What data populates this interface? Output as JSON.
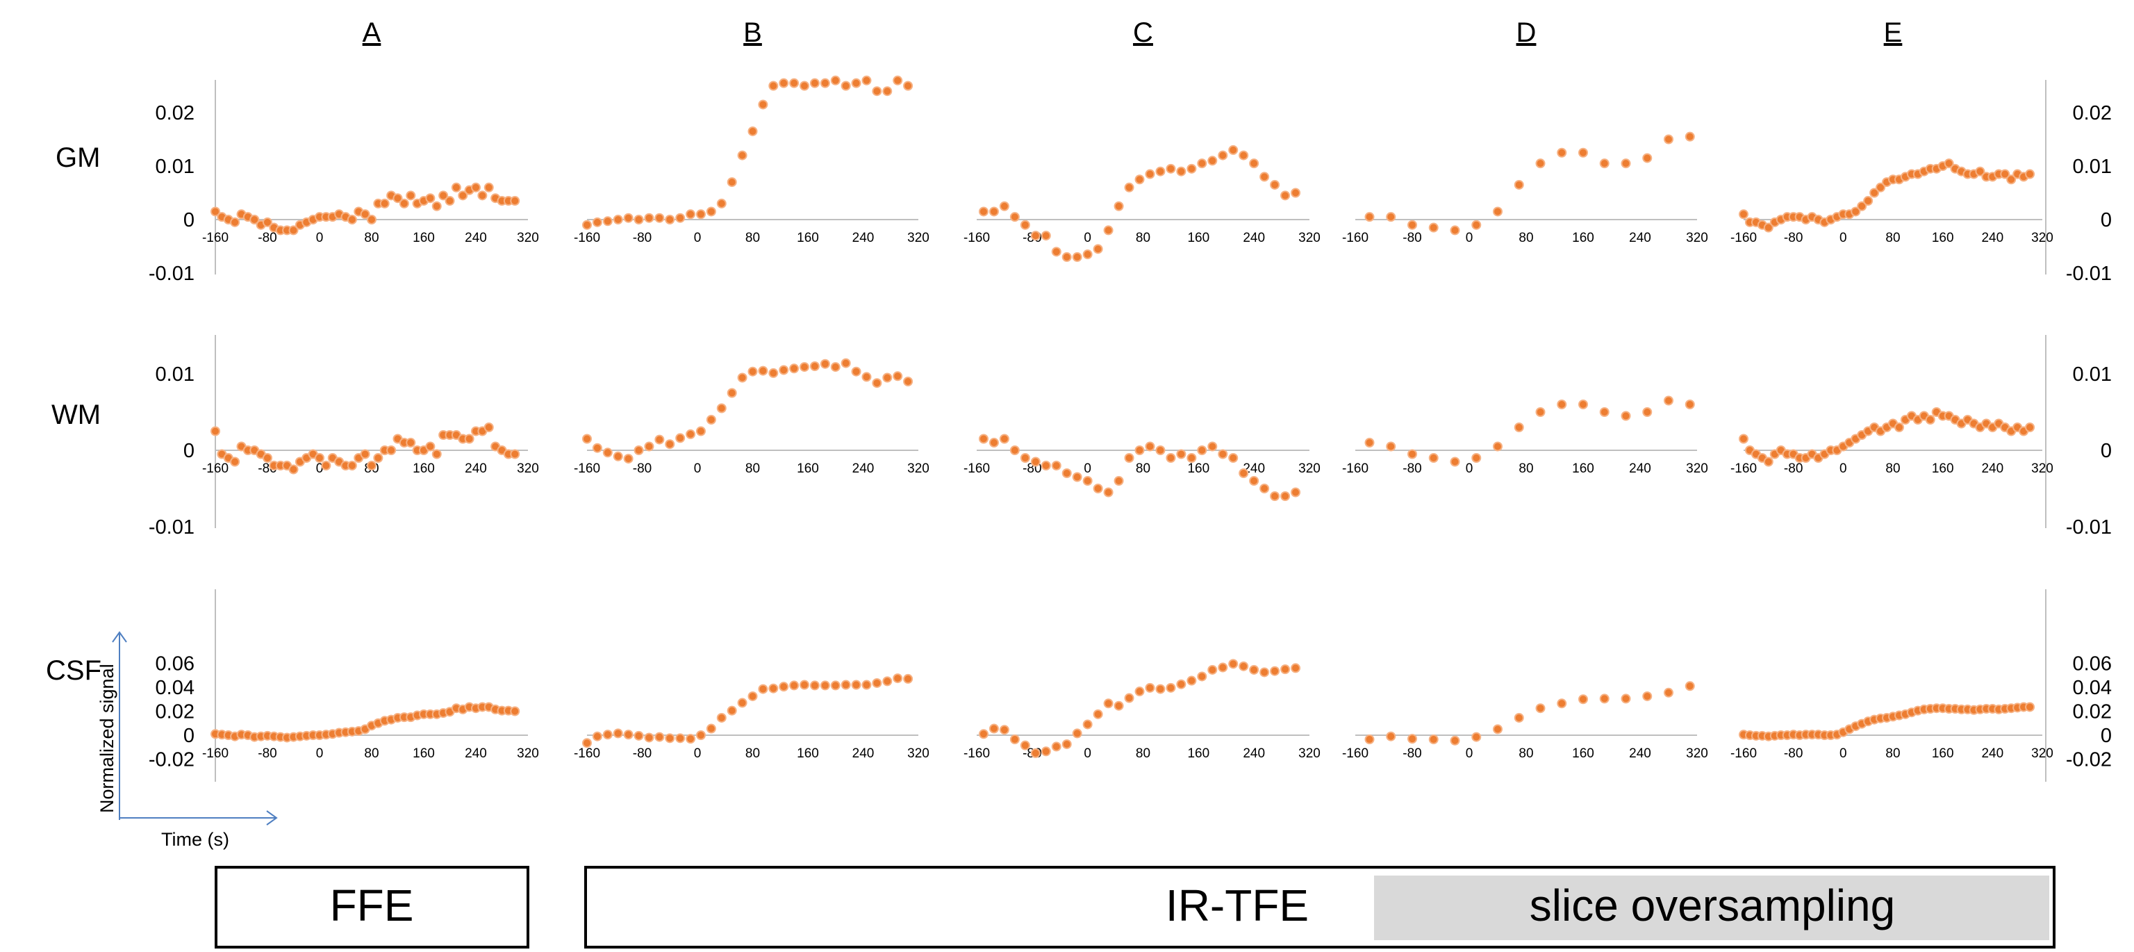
{
  "chart_data": {
    "type": "scatter",
    "columns": [
      "A",
      "B",
      "C",
      "D",
      "E"
    ],
    "rows": [
      "GM",
      "WM",
      "CSF"
    ],
    "x_axis": {
      "ticks": [
        -160,
        -80,
        0,
        80,
        160,
        240,
        320
      ],
      "range": [
        -160,
        320
      ]
    },
    "y_axis": {
      "GM": {
        "ticks": [
          "0.02",
          "0.01",
          "0",
          "-0.01"
        ],
        "range": [
          -0.01,
          0.025
        ]
      },
      "WM": {
        "ticks": [
          "0.01",
          "0",
          "-0.01"
        ],
        "range": [
          -0.01,
          0.01
        ]
      },
      "CSF": {
        "ticks": [
          "0.06",
          "0.04",
          "0.02",
          "0",
          "-0.02"
        ],
        "range": [
          -0.02,
          0.06
        ]
      }
    },
    "legend": {
      "ylabel": "Normalized signal",
      "xlabel": "Time (s)"
    },
    "groups": [
      {
        "label": "FFE",
        "columns": [
          "A"
        ]
      },
      {
        "label": "IR-TFE",
        "columns": [
          "B",
          "C",
          "D",
          "E"
        ]
      },
      {
        "label": "slice oversampling",
        "columns": [
          "D",
          "E"
        ]
      }
    ],
    "series": [
      {
        "column": "A",
        "row": "GM",
        "x": [
          -160,
          -150,
          -140,
          -130,
          -120,
          -110,
          -100,
          -90,
          -80,
          -70,
          -60,
          -50,
          -40,
          -30,
          -20,
          -10,
          0,
          10,
          20,
          30,
          40,
          50,
          60,
          70,
          80,
          90,
          100,
          110,
          120,
          130,
          140,
          150,
          160,
          170,
          180,
          190,
          200,
          210,
          220,
          230,
          240,
          250,
          260,
          270,
          280,
          290,
          300
        ],
        "y": [
          0.0015,
          0.0005,
          0.0,
          -0.0005,
          0.001,
          0.0005,
          0.0,
          -0.001,
          -0.0005,
          -0.0015,
          -0.002,
          -0.002,
          -0.002,
          -0.001,
          -0.0005,
          0.0,
          0.0005,
          0.0005,
          0.0005,
          0.001,
          0.0005,
          0.0,
          0.0015,
          0.001,
          0.0,
          0.003,
          0.003,
          0.0045,
          0.004,
          0.003,
          0.0045,
          0.003,
          0.0035,
          0.004,
          0.0025,
          0.0045,
          0.0035,
          0.006,
          0.0045,
          0.0055,
          0.006,
          0.0045,
          0.006,
          0.004,
          0.0035,
          0.0035,
          0.0035
        ]
      },
      {
        "column": "B",
        "row": "GM",
        "x": [
          -160,
          -145,
          -130,
          -115,
          -100,
          -85,
          -70,
          -55,
          -40,
          -25,
          -10,
          5,
          20,
          35,
          50,
          65,
          80,
          95,
          110,
          125,
          140,
          155,
          170,
          185,
          200,
          215,
          230,
          245,
          260,
          275,
          290,
          305
        ],
        "y": [
          -0.001,
          -0.0005,
          -0.0003,
          0.0,
          0.0003,
          0.0,
          0.0003,
          0.0003,
          0.0,
          0.0003,
          0.001,
          0.001,
          0.0015,
          0.003,
          0.007,
          0.012,
          0.0165,
          0.0215,
          0.025,
          0.0255,
          0.0255,
          0.025,
          0.0255,
          0.0255,
          0.026,
          0.025,
          0.0255,
          0.026,
          0.024,
          0.024,
          0.026,
          0.025
        ]
      },
      {
        "column": "C",
        "row": "GM",
        "x": [
          -150,
          -135,
          -120,
          -105,
          -90,
          -75,
          -60,
          -45,
          -30,
          -15,
          0,
          15,
          30,
          45,
          60,
          75,
          90,
          105,
          120,
          135,
          150,
          165,
          180,
          195,
          210,
          225,
          240,
          255,
          270,
          285,
          300
        ],
        "y": [
          0.0015,
          0.0015,
          0.0025,
          0.0005,
          -0.001,
          -0.003,
          -0.003,
          -0.006,
          -0.007,
          -0.007,
          -0.0065,
          -0.0055,
          -0.002,
          0.0025,
          0.006,
          0.0075,
          0.0085,
          0.009,
          0.0095,
          0.009,
          0.0095,
          0.0105,
          0.011,
          0.012,
          0.013,
          0.012,
          0.0105,
          0.008,
          0.0065,
          0.0045,
          0.005
        ]
      },
      {
        "column": "D",
        "row": "GM",
        "x": [
          -140,
          -110,
          -80,
          -50,
          -20,
          10,
          40,
          70,
          100,
          130,
          160,
          190,
          220,
          250,
          280,
          310
        ],
        "y": [
          0.0005,
          0.0005,
          -0.001,
          -0.0015,
          -0.002,
          -0.001,
          0.0015,
          0.0065,
          0.0105,
          0.0125,
          0.0125,
          0.0105,
          0.0105,
          0.0115,
          0.015,
          0.0155
        ]
      },
      {
        "column": "E",
        "row": "GM",
        "x": [
          -160,
          -150,
          -140,
          -130,
          -120,
          -110,
          -100,
          -90,
          -80,
          -70,
          -60,
          -50,
          -40,
          -30,
          -20,
          -10,
          0,
          10,
          20,
          30,
          40,
          50,
          60,
          70,
          80,
          90,
          100,
          110,
          120,
          130,
          140,
          150,
          160,
          170,
          180,
          190,
          200,
          210,
          220,
          230,
          240,
          250,
          260,
          270,
          280,
          290,
          300
        ],
        "y": [
          0.001,
          -0.0005,
          -0.0005,
          -0.001,
          -0.0015,
          -0.0005,
          0.0,
          0.0005,
          0.0005,
          0.0005,
          0.0,
          0.0005,
          0.0,
          -0.0005,
          0.0,
          0.0005,
          0.001,
          0.001,
          0.0015,
          0.0025,
          0.0035,
          0.005,
          0.006,
          0.007,
          0.0075,
          0.0075,
          0.008,
          0.0085,
          0.0085,
          0.009,
          0.0095,
          0.0095,
          0.01,
          0.0105,
          0.0095,
          0.009,
          0.0085,
          0.0085,
          0.009,
          0.008,
          0.008,
          0.0085,
          0.0085,
          0.0075,
          0.0085,
          0.008,
          0.0085
        ]
      },
      {
        "column": "A",
        "row": "WM",
        "x": [
          -160,
          -150,
          -140,
          -130,
          -120,
          -110,
          -100,
          -90,
          -80,
          -70,
          -60,
          -50,
          -40,
          -30,
          -20,
          -10,
          0,
          10,
          20,
          30,
          40,
          50,
          60,
          70,
          80,
          90,
          100,
          110,
          120,
          130,
          140,
          150,
          160,
          170,
          180,
          190,
          200,
          210,
          220,
          230,
          240,
          250,
          260,
          270,
          280,
          290,
          300
        ],
        "y": [
          0.0025,
          -0.0005,
          -0.001,
          -0.0015,
          0.0005,
          0.0,
          0.0,
          -0.0005,
          -0.001,
          -0.002,
          -0.002,
          -0.002,
          -0.0025,
          -0.0015,
          -0.001,
          -0.0005,
          -0.001,
          -0.002,
          -0.001,
          -0.0015,
          -0.002,
          -0.002,
          -0.001,
          -0.0005,
          -0.002,
          -0.001,
          0.0,
          0.0,
          0.0015,
          0.001,
          0.001,
          0.0,
          0.0,
          0.0005,
          -0.0005,
          0.002,
          0.002,
          0.002,
          0.0015,
          0.0015,
          0.0025,
          0.0025,
          0.003,
          0.0005,
          0.0,
          -0.0005,
          -0.0005
        ]
      },
      {
        "column": "B",
        "row": "WM",
        "x": [
          -160,
          -145,
          -130,
          -115,
          -100,
          -85,
          -70,
          -55,
          -40,
          -25,
          -10,
          5,
          20,
          35,
          50,
          65,
          80,
          95,
          110,
          125,
          140,
          155,
          170,
          185,
          200,
          215,
          230,
          245,
          260,
          275,
          290,
          305
        ],
        "y": [
          0.0015,
          0.0003,
          -0.0003,
          -0.0008,
          -0.0011,
          0.0,
          0.0005,
          0.0014,
          0.0008,
          0.0016,
          0.0021,
          0.0025,
          0.004,
          0.0055,
          0.0075,
          0.0095,
          0.0103,
          0.0104,
          0.0101,
          0.0105,
          0.0107,
          0.0109,
          0.011,
          0.0113,
          0.0109,
          0.0114,
          0.0103,
          0.0096,
          0.0088,
          0.0095,
          0.0097,
          0.009
        ]
      },
      {
        "column": "C",
        "row": "WM",
        "x": [
          -150,
          -135,
          -120,
          -105,
          -90,
          -75,
          -60,
          -45,
          -30,
          -15,
          0,
          15,
          30,
          45,
          60,
          75,
          90,
          105,
          120,
          135,
          150,
          165,
          180,
          195,
          210,
          225,
          240,
          255,
          270,
          285,
          300
        ],
        "y": [
          0.0015,
          0.001,
          0.0015,
          0.0,
          -0.001,
          -0.0015,
          -0.002,
          -0.002,
          -0.003,
          -0.0035,
          -0.004,
          -0.005,
          -0.0055,
          -0.004,
          -0.001,
          0.0,
          0.0005,
          0.0,
          -0.001,
          -0.0005,
          -0.001,
          0.0,
          0.0005,
          -0.0005,
          -0.001,
          -0.003,
          -0.004,
          -0.005,
          -0.006,
          -0.006,
          -0.0055
        ]
      },
      {
        "column": "D",
        "row": "WM",
        "x": [
          -140,
          -110,
          -80,
          -50,
          -20,
          10,
          40,
          70,
          100,
          130,
          160,
          190,
          220,
          250,
          280,
          310
        ],
        "y": [
          0.001,
          0.0005,
          -0.0005,
          -0.001,
          -0.0015,
          -0.001,
          0.0005,
          0.003,
          0.005,
          0.006,
          0.006,
          0.005,
          0.0045,
          0.005,
          0.0065,
          0.006
        ]
      },
      {
        "column": "E",
        "row": "WM",
        "x": [
          -160,
          -150,
          -140,
          -130,
          -120,
          -110,
          -100,
          -90,
          -80,
          -70,
          -60,
          -50,
          -40,
          -30,
          -20,
          -10,
          0,
          10,
          20,
          30,
          40,
          50,
          60,
          70,
          80,
          90,
          100,
          110,
          120,
          130,
          140,
          150,
          160,
          170,
          180,
          190,
          200,
          210,
          220,
          230,
          240,
          250,
          260,
          270,
          280,
          290,
          300
        ],
        "y": [
          0.0015,
          0.0,
          -0.0005,
          -0.001,
          -0.0015,
          -0.0005,
          0.0,
          -0.0005,
          -0.0005,
          -0.001,
          -0.001,
          -0.0005,
          -0.001,
          -0.0005,
          0.0,
          0.0,
          0.0005,
          0.001,
          0.0015,
          0.002,
          0.0025,
          0.003,
          0.0025,
          0.003,
          0.0035,
          0.003,
          0.004,
          0.0045,
          0.004,
          0.0045,
          0.004,
          0.005,
          0.0045,
          0.0045,
          0.004,
          0.0035,
          0.004,
          0.0035,
          0.003,
          0.0035,
          0.003,
          0.0035,
          0.003,
          0.0025,
          0.003,
          0.0025,
          0.003
        ]
      },
      {
        "column": "A",
        "row": "CSF",
        "x": [
          -160,
          -150,
          -140,
          -130,
          -120,
          -110,
          -100,
          -90,
          -80,
          -70,
          -60,
          -50,
          -40,
          -30,
          -20,
          -10,
          0,
          10,
          20,
          30,
          40,
          50,
          60,
          70,
          80,
          90,
          100,
          110,
          120,
          130,
          140,
          150,
          160,
          170,
          180,
          190,
          200,
          210,
          220,
          230,
          240,
          250,
          260,
          270,
          280,
          290,
          300
        ],
        "y": [
          0.001,
          0.0005,
          0.0,
          -0.001,
          0.0005,
          0.0,
          -0.0015,
          -0.001,
          -0.0005,
          -0.001,
          -0.0015,
          -0.002,
          -0.0015,
          -0.001,
          -0.0005,
          0.0,
          0.0,
          0.0005,
          0.001,
          0.002,
          0.0025,
          0.003,
          0.0035,
          0.005,
          0.008,
          0.01,
          0.012,
          0.013,
          0.0145,
          0.015,
          0.015,
          0.0165,
          0.0175,
          0.0175,
          0.0175,
          0.0185,
          0.0195,
          0.0225,
          0.0215,
          0.0235,
          0.0225,
          0.0235,
          0.0235,
          0.0215,
          0.0205,
          0.0205,
          0.02
        ]
      },
      {
        "column": "B",
        "row": "CSF",
        "x": [
          -160,
          -145,
          -130,
          -115,
          -100,
          -85,
          -70,
          -55,
          -40,
          -25,
          -10,
          5,
          20,
          35,
          50,
          65,
          80,
          95,
          110,
          125,
          140,
          155,
          170,
          185,
          200,
          215,
          230,
          245,
          260,
          275,
          290,
          305
        ],
        "y": [
          -0.0065,
          -0.001,
          0.0005,
          0.0015,
          0.0005,
          -0.0005,
          -0.002,
          -0.0015,
          -0.0025,
          -0.0025,
          -0.003,
          0.0,
          0.0055,
          0.0145,
          0.0205,
          0.027,
          0.0325,
          0.0385,
          0.039,
          0.0405,
          0.0415,
          0.042,
          0.0415,
          0.0415,
          0.0415,
          0.042,
          0.042,
          0.042,
          0.0435,
          0.045,
          0.0475,
          0.047
        ]
      },
      {
        "column": "C",
        "row": "CSF",
        "x": [
          -150,
          -135,
          -120,
          -105,
          -90,
          -75,
          -60,
          -45,
          -30,
          -15,
          0,
          15,
          30,
          45,
          60,
          75,
          90,
          105,
          120,
          135,
          150,
          165,
          180,
          195,
          210,
          225,
          240,
          255,
          270,
          285,
          300
        ],
        "y": [
          0.001,
          0.0055,
          0.0045,
          -0.0035,
          -0.0085,
          -0.015,
          -0.0135,
          -0.0095,
          -0.0075,
          0.0015,
          0.009,
          0.0175,
          0.0265,
          0.0245,
          0.031,
          0.0365,
          0.0395,
          0.0385,
          0.0395,
          0.0425,
          0.0455,
          0.049,
          0.0545,
          0.0565,
          0.0595,
          0.0575,
          0.0545,
          0.0525,
          0.0535,
          0.055,
          0.056
        ]
      },
      {
        "column": "D",
        "row": "CSF",
        "x": [
          -140,
          -110,
          -80,
          -50,
          -20,
          10,
          40,
          70,
          100,
          130,
          160,
          190,
          220,
          250,
          280,
          310
        ],
        "y": [
          -0.0035,
          -0.001,
          -0.003,
          -0.0035,
          -0.0045,
          -0.0015,
          0.005,
          0.0145,
          0.0225,
          0.0265,
          0.03,
          0.0305,
          0.0305,
          0.0325,
          0.0355,
          0.041
        ]
      },
      {
        "column": "E",
        "row": "CSF",
        "x": [
          -160,
          -150,
          -140,
          -130,
          -120,
          -110,
          -100,
          -90,
          -80,
          -70,
          -60,
          -50,
          -40,
          -30,
          -20,
          -10,
          0,
          10,
          20,
          30,
          40,
          50,
          60,
          70,
          80,
          90,
          100,
          110,
          120,
          130,
          140,
          150,
          160,
          170,
          180,
          190,
          200,
          210,
          220,
          230,
          240,
          250,
          260,
          270,
          280,
          290,
          300
        ],
        "y": [
          0.0005,
          0.0,
          -0.0005,
          -0.0005,
          -0.001,
          -0.0005,
          0.0,
          0.0,
          0.0005,
          0.0,
          0.0005,
          0.0005,
          0.0005,
          0.0,
          0.0,
          0.0005,
          0.0025,
          0.005,
          0.0075,
          0.0095,
          0.0115,
          0.013,
          0.014,
          0.0145,
          0.0155,
          0.0165,
          0.0175,
          0.019,
          0.0205,
          0.0215,
          0.022,
          0.0225,
          0.0225,
          0.022,
          0.022,
          0.0215,
          0.0215,
          0.021,
          0.0215,
          0.022,
          0.022,
          0.0215,
          0.022,
          0.0225,
          0.023,
          0.0235,
          0.0235
        ]
      }
    ]
  }
}
